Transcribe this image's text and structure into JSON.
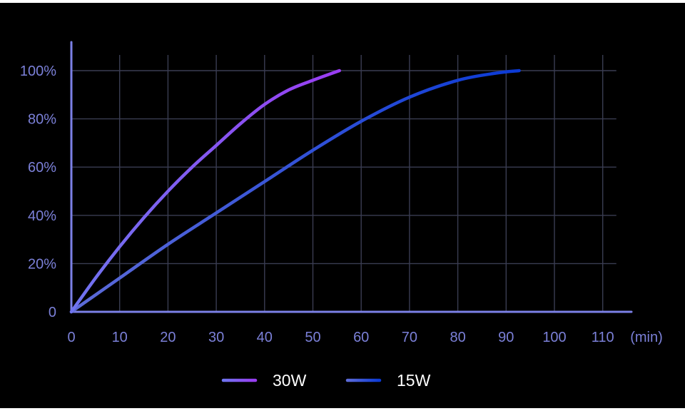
{
  "chart_data": {
    "type": "line",
    "title": "",
    "xlabel": "",
    "ylabel": "",
    "x_unit": "(min)",
    "xlim": [
      0,
      115
    ],
    "ylim": [
      0,
      100
    ],
    "x_ticks": [
      0,
      10,
      20,
      30,
      40,
      50,
      60,
      70,
      80,
      90,
      100,
      110
    ],
    "x_tick_labels": [
      "0",
      "10",
      "20",
      "30",
      "40",
      "50",
      "60",
      "70",
      "80",
      "90",
      "100",
      "110"
    ],
    "y_ticks": [
      0,
      20,
      40,
      60,
      80,
      100
    ],
    "y_tick_labels": [
      "0",
      "20%",
      "40%",
      "60%",
      "80%",
      "100%"
    ],
    "grid": true,
    "legend_position": "bottom-center",
    "series": [
      {
        "name": "30W",
        "color_start": "#6f74f0",
        "color_end": "#9a3cf2",
        "x": [
          0,
          5,
          10,
          15,
          20,
          25,
          30,
          35,
          40,
          45,
          50,
          55.5
        ],
        "y": [
          0,
          14,
          27,
          39,
          50,
          60,
          69,
          78,
          86,
          92,
          96,
          100
        ]
      },
      {
        "name": "15W",
        "color_start": "#5d6bd8",
        "color_end": "#0b3ad6",
        "x": [
          0,
          10,
          20,
          30,
          40,
          50,
          60,
          70,
          80,
          88,
          92.7
        ],
        "y": [
          0,
          14,
          28,
          41,
          54,
          67,
          79,
          89,
          96,
          99,
          100
        ]
      }
    ]
  }
}
